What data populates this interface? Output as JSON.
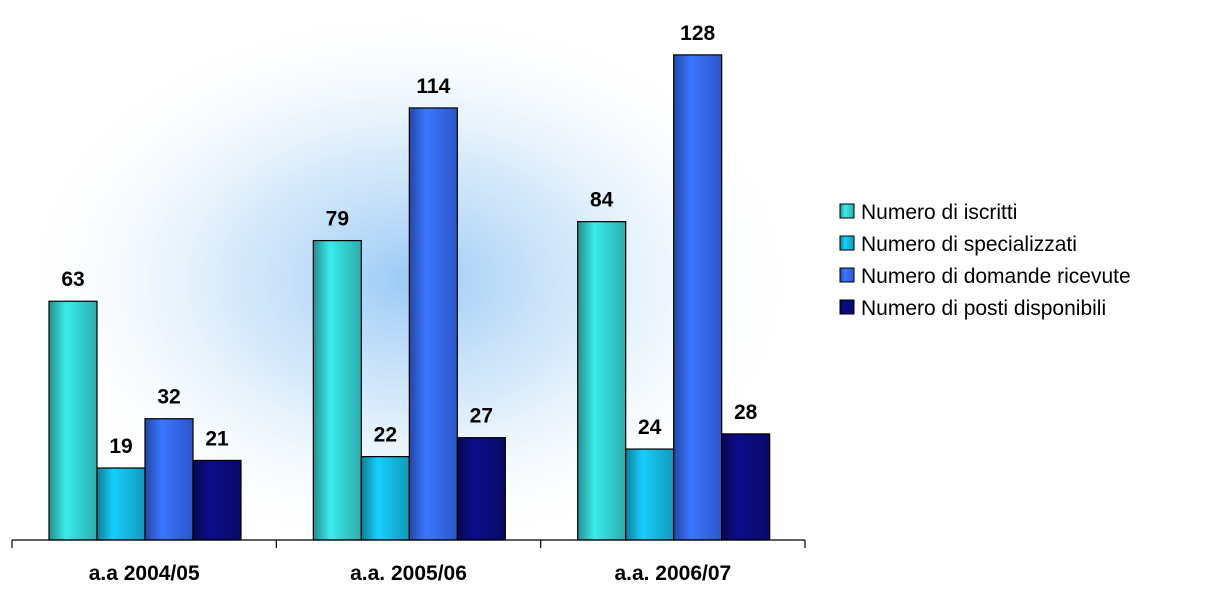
{
  "chart_data": {
    "type": "bar",
    "categories": [
      "a.a 2004/05",
      "a.a. 2005/06",
      "a.a. 2006/07"
    ],
    "series": [
      {
        "name": "Numero di iscritti",
        "values": [
          63,
          79,
          84
        ],
        "color": "#33cccc"
      },
      {
        "name": "Numero di specializzati",
        "values": [
          19,
          22,
          24
        ],
        "color": "#14b4dc"
      },
      {
        "name": "Numero di domande ricevute",
        "values": [
          32,
          114,
          128
        ],
        "color": "#3366ee"
      },
      {
        "name": "Numero di posti disponibili",
        "values": [
          21,
          27,
          28
        ],
        "color": "#0a0a78"
      }
    ],
    "data_labels": true,
    "ylim": [
      0,
      130
    ],
    "legend_position": "right",
    "grid": false,
    "background": "blue radial glow"
  }
}
